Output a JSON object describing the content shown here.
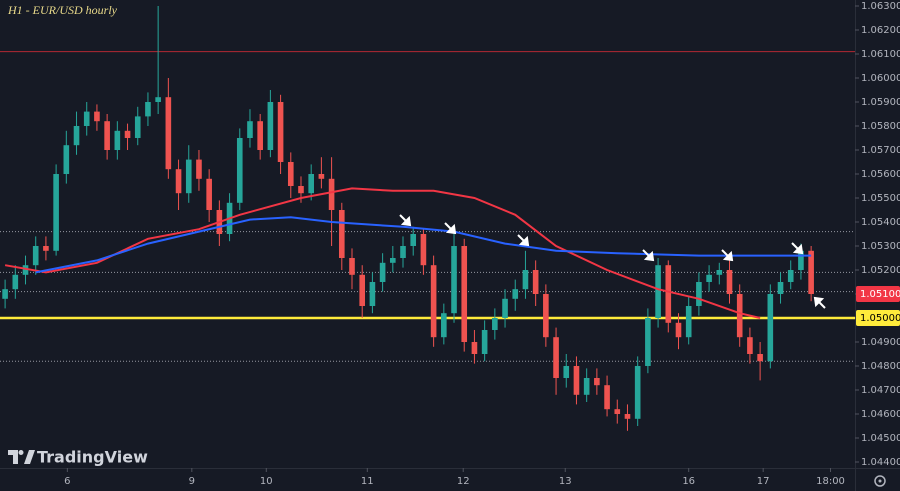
{
  "chart_data": {
    "type": "candlestick",
    "title": "H1 - EUR/USD hourly",
    "watermark": "TradingView",
    "up_color": "#26a69a",
    "down_color": "#ef5350",
    "open": [
      1.0508,
      1.0512,
      1.0518,
      1.0522,
      1.053,
      1.0528,
      1.056,
      1.0572,
      1.058,
      1.0586,
      1.0582,
      1.057,
      1.0578,
      1.0575,
      1.0584,
      1.059,
      1.0592,
      1.0562,
      1.0552,
      1.0566,
      1.0558,
      1.0545,
      1.0535,
      1.0548,
      1.0575,
      1.0582,
      1.057,
      1.059,
      1.0565,
      1.0555,
      1.0552,
      1.056,
      1.0558,
      1.0545,
      1.0525,
      1.0518,
      1.0505,
      1.0515,
      1.0523,
      1.0525,
      1.053,
      1.0535,
      1.0522,
      1.0492,
      1.0502,
      1.053,
      1.049,
      1.0485,
      1.0495,
      1.05,
      1.0508,
      1.0512,
      1.052,
      1.051,
      1.0492,
      1.0475,
      1.048,
      1.0468,
      1.0475,
      1.0472,
      1.0462,
      1.046,
      1.0458,
      1.048,
      1.05,
      1.0522,
      1.0498,
      1.0492,
      1.0505,
      1.0515,
      1.0518,
      1.052,
      1.051,
      1.0492,
      1.0485,
      1.0482,
      1.051,
      1.0515,
      1.052,
      1.0528
    ],
    "high": [
      1.0516,
      1.0522,
      1.0526,
      1.0534,
      1.0534,
      1.0564,
      1.0578,
      1.0586,
      1.059,
      1.0589,
      1.0585,
      1.0582,
      1.0581,
      1.0588,
      1.0594,
      1.063,
      1.06,
      1.0566,
      1.0572,
      1.057,
      1.0562,
      1.0549,
      1.0552,
      1.0579,
      1.0587,
      1.0585,
      1.0595,
      1.0593,
      1.0569,
      1.0559,
      1.0564,
      1.0567,
      1.0567,
      1.0548,
      1.0529,
      1.0522,
      1.0519,
      1.0527,
      1.053,
      1.0534,
      1.0538,
      1.0537,
      1.0526,
      1.0506,
      1.0537,
      1.0533,
      1.0495,
      1.0499,
      1.0504,
      1.0512,
      1.0516,
      1.0528,
      1.0524,
      1.0514,
      1.0496,
      1.0485,
      1.0484,
      1.0479,
      1.0479,
      1.0476,
      1.0466,
      1.0464,
      1.0484,
      1.0504,
      1.0525,
      1.0524,
      1.0502,
      1.0509,
      1.0519,
      1.0522,
      1.0523,
      1.0524,
      1.0514,
      1.0496,
      1.049,
      1.0514,
      1.0519,
      1.0524,
      1.0531,
      1.053
    ],
    "low": [
      1.0504,
      1.0508,
      1.0514,
      1.0518,
      1.0524,
      1.0526,
      1.0556,
      1.0568,
      1.0576,
      1.0578,
      1.0566,
      1.0566,
      1.057,
      1.0572,
      1.058,
      1.0585,
      1.0558,
      1.0545,
      1.0548,
      1.0553,
      1.054,
      1.053,
      1.0532,
      1.0545,
      1.0571,
      1.0566,
      1.0567,
      1.056,
      1.055,
      1.0548,
      1.0549,
      1.0554,
      1.053,
      1.052,
      1.0512,
      1.05,
      1.0502,
      1.0511,
      1.0519,
      1.0521,
      1.0526,
      1.0518,
      1.0488,
      1.0489,
      1.0498,
      1.0486,
      1.0481,
      1.0482,
      1.0491,
      1.0496,
      1.0503,
      1.0508,
      1.0505,
      1.0488,
      1.0468,
      1.0471,
      1.0464,
      1.0465,
      1.0468,
      1.0459,
      1.0456,
      1.0453,
      1.0455,
      1.0477,
      1.0496,
      1.0494,
      1.0487,
      1.0489,
      1.0501,
      1.0511,
      1.0514,
      1.0506,
      1.0488,
      1.0481,
      1.0474,
      1.0479,
      1.0506,
      1.0512,
      1.0516,
      1.0507
    ],
    "close": [
      1.0512,
      1.0518,
      1.0522,
      1.053,
      1.0528,
      1.056,
      1.0572,
      1.058,
      1.0586,
      1.0582,
      1.057,
      1.0578,
      1.0575,
      1.0584,
      1.059,
      1.0592,
      1.0562,
      1.0552,
      1.0566,
      1.0558,
      1.0545,
      1.0535,
      1.0548,
      1.0575,
      1.0582,
      1.057,
      1.059,
      1.0565,
      1.0555,
      1.0552,
      1.056,
      1.0558,
      1.0545,
      1.0525,
      1.0518,
      1.0505,
      1.0515,
      1.0523,
      1.0525,
      1.053,
      1.0535,
      1.0522,
      1.0492,
      1.0502,
      1.053,
      1.049,
      1.0485,
      1.0495,
      1.05,
      1.0508,
      1.0512,
      1.052,
      1.051,
      1.0492,
      1.0475,
      1.048,
      1.0468,
      1.0475,
      1.0472,
      1.0462,
      1.046,
      1.0458,
      1.048,
      1.05,
      1.0522,
      1.0498,
      1.0492,
      1.0505,
      1.0515,
      1.0518,
      1.052,
      1.051,
      1.0492,
      1.0485,
      1.0482,
      1.051,
      1.0515,
      1.052,
      1.0528,
      1.051
    ],
    "lines": [
      {
        "color": "#f23645",
        "x": [
          0,
          4,
          9,
          14,
          19,
          23,
          29,
          34,
          38,
          42,
          46,
          50,
          54,
          59,
          64,
          68,
          72,
          74
        ],
        "values": [
          1.0522,
          1.0519,
          1.0523,
          1.0533,
          1.0537,
          1.0543,
          1.055,
          1.0554,
          1.0553,
          1.0553,
          1.055,
          1.0543,
          1.053,
          1.052,
          1.0512,
          1.0508,
          1.0502,
          1.05
        ]
      },
      {
        "color": "#2962ff",
        "x": [
          3,
          9,
          14,
          19,
          24,
          28,
          32,
          39,
          44,
          49,
          54,
          60,
          68,
          74,
          79
        ],
        "values": [
          1.0519,
          1.0524,
          1.0531,
          1.0536,
          1.0541,
          1.0542,
          1.054,
          1.0538,
          1.0536,
          1.0531,
          1.0528,
          1.0527,
          1.0526,
          1.0526,
          1.0526
        ]
      }
    ],
    "levels": [
      {
        "value": 1.0611,
        "color": "#b22833",
        "style": "solid"
      },
      {
        "value": 1.0536,
        "color": "#9598a1",
        "style": "dotted"
      },
      {
        "value": 1.0519,
        "color": "#9598a1",
        "style": "dotted"
      },
      {
        "value": 1.0511,
        "color": "#9598a1",
        "style": "dotted"
      },
      {
        "value": 1.0482,
        "color": "#9598a1",
        "style": "dotted"
      },
      {
        "value": 1.05,
        "color": "#ffeb3b",
        "style": "thick"
      }
    ],
    "price_labels": [
      {
        "value": 1.051,
        "label": "1.05100",
        "color": "#f23645",
        "text_color": "#ffffff"
      },
      {
        "value": 1.05,
        "label": "1.05000",
        "color": "#ffeb3b",
        "text_color": "#000000"
      }
    ],
    "xlim": [
      -0.5,
      83.3
    ],
    "ylim": [
      1.04375,
      1.06325
    ],
    "xticks": [
      {
        "value": 6.1,
        "label": "6"
      },
      {
        "value": 18.3,
        "label": "9"
      },
      {
        "value": 25.6,
        "label": "10"
      },
      {
        "value": 35.5,
        "label": "11"
      },
      {
        "value": 44.9,
        "label": "12"
      },
      {
        "value": 54.9,
        "label": "13"
      },
      {
        "value": 67,
        "label": "16"
      },
      {
        "value": 74.3,
        "label": "17"
      },
      {
        "value": 80.9,
        "label": "18:00"
      }
    ],
    "yticks": [
      {
        "value": 1.044,
        "label": "1.04400"
      },
      {
        "value": 1.045,
        "label": "1.04500"
      },
      {
        "value": 1.046,
        "label": "1.04600"
      },
      {
        "value": 1.047,
        "label": "1.04700"
      },
      {
        "value": 1.048,
        "label": "1.04800"
      },
      {
        "value": 1.049,
        "label": "1.04900"
      },
      {
        "value": 1.05,
        "label": "1.05000"
      },
      {
        "value": 1.051,
        "label": "1.05100"
      },
      {
        "value": 1.052,
        "label": "1.05200"
      },
      {
        "value": 1.053,
        "label": "1.05300"
      },
      {
        "value": 1.054,
        "label": "1.05400"
      },
      {
        "value": 1.055,
        "label": "1.05500"
      },
      {
        "value": 1.056,
        "label": "1.05600"
      },
      {
        "value": 1.057,
        "label": "1.05700"
      },
      {
        "value": 1.058,
        "label": "1.05800"
      },
      {
        "value": 1.059,
        "label": "1.05900"
      },
      {
        "value": 1.06,
        "label": "1.06000"
      },
      {
        "value": 1.061,
        "label": "1.06100"
      },
      {
        "value": 1.062,
        "label": "1.06200"
      },
      {
        "value": 1.063,
        "label": "1.06300"
      }
    ]
  }
}
